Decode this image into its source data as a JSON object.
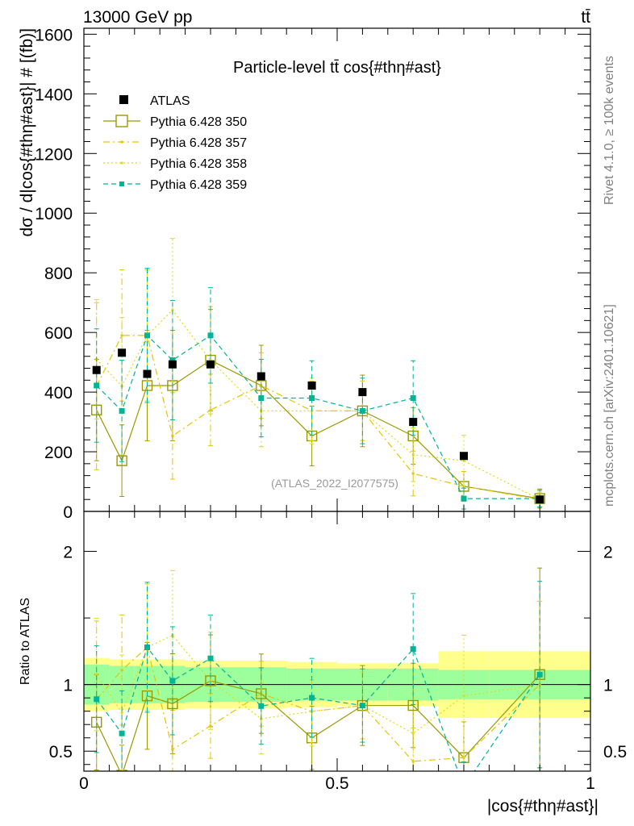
{
  "header": {
    "left": "13000 GeV pp",
    "right": "tt̄"
  },
  "side_labels": {
    "rivet": "Rivet 4.1.0, ≥ 100k events",
    "mcplots": "mcplots.cern.ch [arXiv:2401.10621]"
  },
  "chart_data": {
    "type": "line",
    "title": "Particle-level tt̄ cos{#thη#ast}",
    "xlabel": "|cos{#thη#ast}|",
    "ylabel": "dσ / d|cos{#thη#ast}| # [(fb)]",
    "ratio_ylabel": "Ratio to ATLAS",
    "watermark": "(ATLAS_2022_I2077575)",
    "xlim": [
      0,
      1
    ],
    "ylim": [
      0,
      1620
    ],
    "ratio_ylim": [
      0.35,
      2.3
    ],
    "x_ticks": [
      "0",
      "0.5",
      "1"
    ],
    "y_ticks": [
      "0",
      "200",
      "400",
      "600",
      "800",
      "1000",
      "1200",
      "1400",
      "1600"
    ],
    "ratio_ticks": [
      "0.5",
      "1",
      "2"
    ],
    "bins": [
      {
        "lo": 0.0,
        "hi": 0.05
      },
      {
        "lo": 0.05,
        "hi": 0.1
      },
      {
        "lo": 0.1,
        "hi": 0.15
      },
      {
        "lo": 0.15,
        "hi": 0.2
      },
      {
        "lo": 0.2,
        "hi": 0.3
      },
      {
        "lo": 0.3,
        "hi": 0.4
      },
      {
        "lo": 0.4,
        "hi": 0.5
      },
      {
        "lo": 0.5,
        "hi": 0.6
      },
      {
        "lo": 0.6,
        "hi": 0.7
      },
      {
        "lo": 0.7,
        "hi": 0.8
      },
      {
        "lo": 0.8,
        "hi": 1.0
      }
    ],
    "data": {
      "name": "ATLAS",
      "x": [
        0.025,
        0.075,
        0.125,
        0.175,
        0.25,
        0.35,
        0.45,
        0.55,
        0.65,
        0.75,
        0.9
      ],
      "y": [
        474,
        532,
        461,
        493,
        493,
        453,
        422,
        400,
        300,
        186,
        40
      ],
      "band_inner": [
        0.15,
        0.14,
        0.14,
        0.14,
        0.13,
        0.13,
        0.12,
        0.12,
        0.12,
        0.11,
        0.11
      ],
      "band_outer": [
        0.2,
        0.19,
        0.19,
        0.19,
        0.18,
        0.18,
        0.17,
        0.16,
        0.16,
        0.25,
        0.25
      ]
    },
    "series": [
      {
        "name": "Pythia 6.428 350",
        "color": "#999900",
        "style": "solid",
        "marker": "open-square",
        "x": [
          0.025,
          0.075,
          0.125,
          0.175,
          0.25,
          0.35,
          0.45,
          0.55,
          0.65,
          0.75,
          0.9
        ],
        "values": [
          340,
          170,
          422,
          422,
          507,
          422,
          253,
          337,
          253,
          84,
          43
        ],
        "err": [
          170,
          120,
          185,
          185,
          170,
          135,
          100,
          120,
          95,
          50,
          32
        ]
      },
      {
        "name": "Pythia 6.428 357",
        "color": "#e6c300",
        "style": "dashdot",
        "marker": "small-square",
        "x": [
          0.025,
          0.075,
          0.125,
          0.175,
          0.25,
          0.35,
          0.45,
          0.55,
          0.65,
          0.75,
          0.9
        ],
        "values": [
          420,
          590,
          590,
          253,
          340,
          422,
          337,
          337,
          127,
          84,
          40
        ],
        "err": [
          280,
          220,
          220,
          145,
          120,
          110,
          100,
          100,
          75,
          50,
          25
        ]
      },
      {
        "name": "Pythia 6.428 358",
        "color": "#dcdc1e",
        "style": "dotted",
        "marker": "small-square",
        "x": [
          0.025,
          0.075,
          0.125,
          0.175,
          0.25,
          0.35,
          0.45,
          0.55,
          0.65,
          0.75,
          0.9
        ],
        "values": [
          510,
          420,
          590,
          675,
          507,
          337,
          337,
          337,
          190,
          170,
          40
        ],
        "err": [
          200,
          230,
          220,
          240,
          180,
          120,
          110,
          100,
          90,
          85,
          25
        ]
      },
      {
        "name": "Pythia 6.428 359",
        "color": "#00b496",
        "style": "dashed",
        "marker": "filled-square",
        "x": [
          0.025,
          0.075,
          0.125,
          0.175,
          0.25,
          0.35,
          0.45,
          0.55,
          0.65,
          0.75,
          0.9
        ],
        "values": [
          422,
          337,
          590,
          507,
          590,
          380,
          380,
          337,
          380,
          43,
          43
        ],
        "err": [
          190,
          170,
          225,
          200,
          160,
          130,
          125,
          110,
          125,
          35,
          28
        ]
      }
    ]
  }
}
